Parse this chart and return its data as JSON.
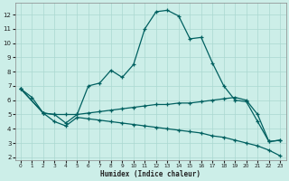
{
  "title": "",
  "xlabel": "Humidex (Indice chaleur)",
  "background_color": "#cceee8",
  "grid_color": "#aad8d0",
  "line_color": "#006060",
  "xlim": [
    -0.5,
    23.5
  ],
  "ylim": [
    1.8,
    12.8
  ],
  "xticks": [
    0,
    1,
    2,
    3,
    4,
    5,
    6,
    7,
    8,
    9,
    10,
    11,
    12,
    13,
    14,
    15,
    16,
    17,
    18,
    19,
    20,
    21,
    22,
    23
  ],
  "yticks": [
    2,
    3,
    4,
    5,
    6,
    7,
    8,
    9,
    10,
    11,
    12
  ],
  "line1_x": [
    0,
    1,
    2,
    3,
    4,
    5,
    6,
    7,
    8,
    9,
    10,
    11,
    12,
    13,
    14,
    15,
    16,
    17,
    18,
    19,
    20,
    21,
    22,
    23
  ],
  "line1_y": [
    6.8,
    6.2,
    5.1,
    5.0,
    4.4,
    5.0,
    7.0,
    7.2,
    8.1,
    7.6,
    8.5,
    11.0,
    12.2,
    12.3,
    11.9,
    10.3,
    10.4,
    8.6,
    7.0,
    6.0,
    5.9,
    4.5,
    3.1,
    3.2
  ],
  "line2_x": [
    0,
    2,
    3,
    4,
    5,
    6,
    7,
    8,
    9,
    10,
    11,
    12,
    13,
    14,
    15,
    16,
    17,
    18,
    19,
    20,
    21,
    22,
    23
  ],
  "line2_y": [
    6.8,
    5.1,
    5.0,
    5.0,
    5.0,
    5.1,
    5.2,
    5.3,
    5.4,
    5.5,
    5.6,
    5.7,
    5.7,
    5.8,
    5.8,
    5.9,
    6.0,
    6.1,
    6.2,
    6.0,
    5.0,
    3.1,
    3.2
  ],
  "line3_x": [
    0,
    2,
    3,
    4,
    5,
    6,
    7,
    8,
    9,
    10,
    11,
    12,
    13,
    14,
    15,
    16,
    17,
    18,
    19,
    20,
    21,
    22,
    23
  ],
  "line3_y": [
    6.8,
    5.1,
    4.5,
    4.2,
    4.8,
    4.7,
    4.6,
    4.5,
    4.4,
    4.3,
    4.2,
    4.1,
    4.0,
    3.9,
    3.8,
    3.7,
    3.5,
    3.4,
    3.2,
    3.0,
    2.8,
    2.5,
    2.1
  ]
}
